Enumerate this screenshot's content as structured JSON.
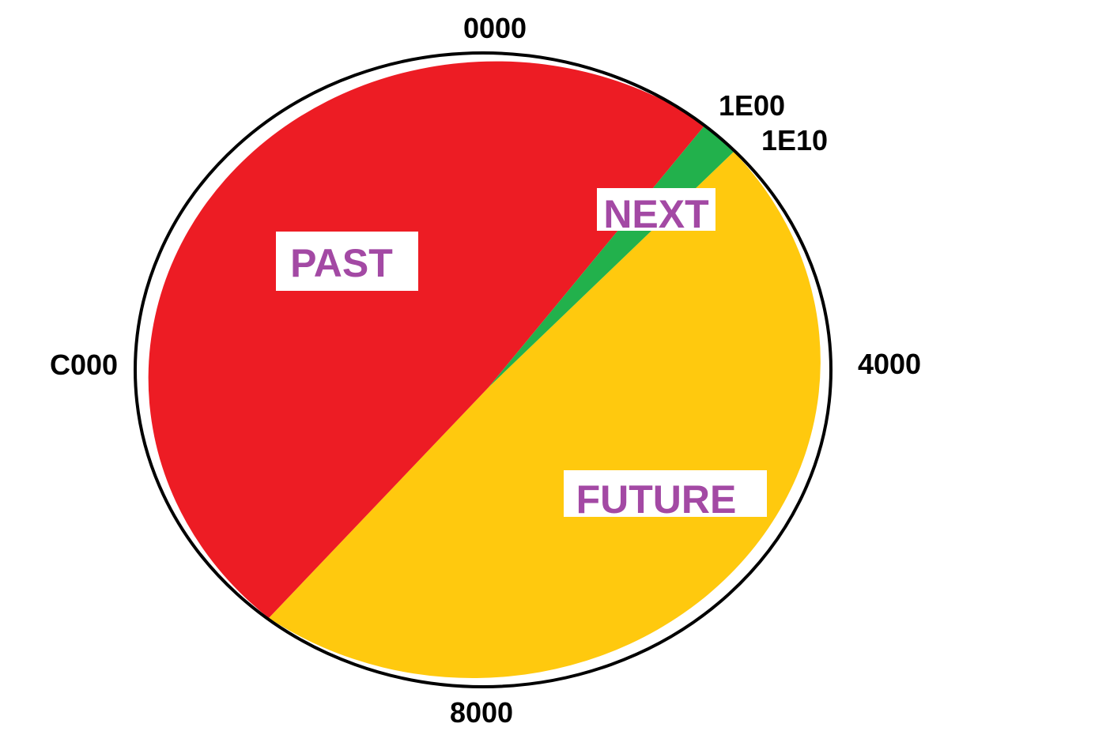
{
  "diagram": {
    "colors": {
      "past": "#ED1C24",
      "next": "#22B14C",
      "future": "#FFC90E",
      "label_text": "#A349A4",
      "outline": "#000000"
    },
    "tick_labels": {
      "top": "0000",
      "right": "4000",
      "bottom": "8000",
      "left": "C000",
      "next_start": "1E00",
      "next_end": "1E10"
    },
    "regions": {
      "past": "PAST",
      "next": "NEXT",
      "future": "FUTURE"
    }
  }
}
